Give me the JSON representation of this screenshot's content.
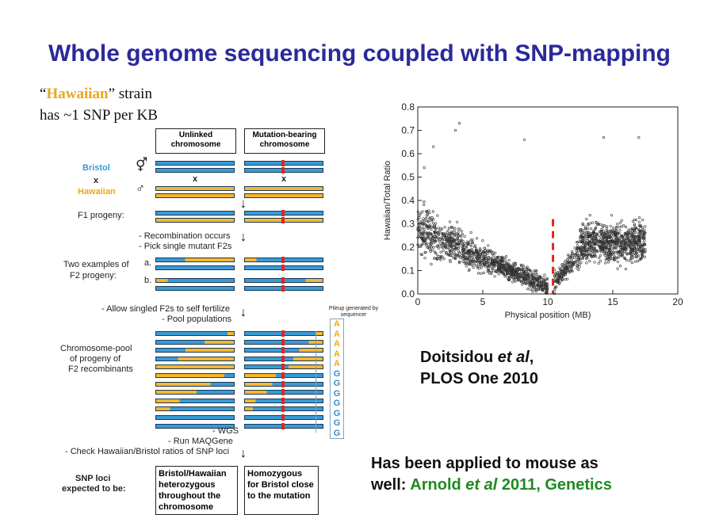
{
  "title": "Whole genome sequencing coupled with SNP-mapping",
  "strain": {
    "open_quote": "“",
    "name": "Hawaiian",
    "close_quote": "” strain",
    "line2": "has ~1 SNP per KB"
  },
  "diagram": {
    "col1_header": "Unlinked chromosome",
    "col2_header": "Mutation-bearing chromosome",
    "bristol": "Bristol",
    "x": "x",
    "hawaiian": "Hawaiian",
    "f1": "F1 progeny:",
    "step1": "- Recombination occurs",
    "step2": "- Pick single mutant F2s",
    "two_examples": "Two examples of",
    "f2": "F2 progeny:",
    "a": "a.",
    "b": "b.",
    "step3": "- Allow singled F2s to self fertilize",
    "step4": "- Pool populations",
    "pool1": "Chromosome-pool",
    "pool2": "of progeny  of",
    "pool3": "F2 recombinants",
    "pileup": "Pileup generated by sequencer",
    "pileup_bases": [
      "A",
      "A",
      "A",
      "A",
      "A",
      "G",
      "G",
      "G",
      "G",
      "G",
      "G",
      "G"
    ],
    "step5": "- WGS",
    "step6": "- Run MAQGene",
    "step7": "- Check Hawaiian/Bristol ratios of SNP loci",
    "snp1": "SNP loci",
    "snp2": "expected to be:",
    "box1": "Bristol/Hawaiian heterozygous throughout the chromosome",
    "box2": "Homozygous for Bristol close to the mutation"
  },
  "chart_data": {
    "type": "scatter",
    "xlabel": "Physical position (MB)",
    "ylabel": "Hawaiian/Total Ratio",
    "xlim": [
      0,
      20
    ],
    "ylim": [
      0,
      0.8
    ],
    "xticks": [
      0,
      5,
      10,
      15,
      20
    ],
    "yticks": [
      0.0,
      0.1,
      0.2,
      0.3,
      0.4,
      0.5,
      0.6,
      0.7,
      0.8
    ],
    "mutation_marker_x": 10.4,
    "dense_regions": [
      {
        "x": [
          0,
          10
        ],
        "y_at_start": 0.28,
        "y_at_end": 0.03
      },
      {
        "x": [
          10.5,
          12.5
        ],
        "y_at_start": 0.05,
        "y_at_end": 0.18
      },
      {
        "x": [
          12.5,
          17.5
        ],
        "y_at_start": 0.22,
        "y_at_end": 0.22
      }
    ],
    "outliers": [
      [
        3.2,
        0.73
      ],
      [
        8.2,
        0.66
      ],
      [
        14.3,
        0.67
      ],
      [
        17.0,
        0.67
      ],
      [
        0.5,
        0.54
      ],
      [
        2.9,
        0.7
      ],
      [
        1.2,
        0.63
      ]
    ]
  },
  "citation": {
    "author": "Doitsidou ",
    "etal": "et al",
    "comma": ",",
    "journal": "PLOS One 2010"
  },
  "applied": {
    "line1": "Has been applied to mouse as",
    "line2_prefix": "well: ",
    "ref_author": "Arnold ",
    "ref_etal": "et al",
    "ref_rest": " 2011, Genetics"
  }
}
